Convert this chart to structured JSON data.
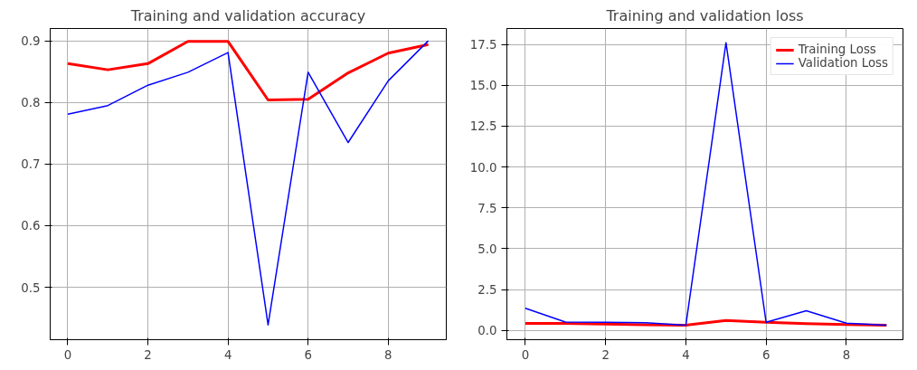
{
  "chart_data": [
    {
      "type": "line",
      "title": "Training and validation accuracy",
      "x": [
        0,
        1,
        2,
        3,
        4,
        5,
        6,
        7,
        8,
        9
      ],
      "xlim": [
        -0.44,
        9.45
      ],
      "xticks": [
        0,
        2,
        4,
        6,
        8
      ],
      "ylim": [
        0.415,
        0.92
      ],
      "yticks": [
        0.5,
        0.6,
        0.7,
        0.8,
        0.9
      ],
      "grid": true,
      "legend": false,
      "series": [
        {
          "color": "#ff0000",
          "values": [
            0.863,
            0.853,
            0.863,
            0.899,
            0.899,
            0.804,
            0.805,
            0.848,
            0.88,
            0.894
          ]
        },
        {
          "color": "#0000ff",
          "values": [
            0.781,
            0.795,
            0.828,
            0.849,
            0.881,
            0.439,
            0.849,
            0.735,
            0.835,
            0.9
          ]
        }
      ]
    },
    {
      "type": "line",
      "title": "Training and validation loss",
      "x": [
        0,
        1,
        2,
        3,
        4,
        5,
        6,
        7,
        8,
        9
      ],
      "xlim": [
        -0.46,
        9.41
      ],
      "xticks": [
        0,
        2,
        4,
        6,
        8
      ],
      "ylim": [
        -0.56,
        18.47
      ],
      "yticks": [
        {
          "value": 0,
          "label": "0.0"
        },
        {
          "value": 2.5,
          "label": "2.5"
        },
        {
          "value": 5,
          "label": "5.0"
        },
        {
          "value": 7.5,
          "label": "7.5"
        },
        {
          "value": 10,
          "label": "10.0"
        },
        {
          "value": 12.5,
          "label": "12.5"
        },
        {
          "value": 15,
          "label": "15.0"
        },
        {
          "value": 17.5,
          "label": "17.5"
        }
      ],
      "grid": true,
      "legend": "top right",
      "series": [
        {
          "name": "Training Loss",
          "color": "#ff0000",
          "values": [
            0.43,
            0.43,
            0.4,
            0.35,
            0.33,
            0.62,
            0.5,
            0.42,
            0.37,
            0.33
          ]
        },
        {
          "name": "Validation Loss",
          "color": "#0000ff",
          "values": [
            1.36,
            0.52,
            0.5,
            0.48,
            0.33,
            17.6,
            0.5,
            1.21,
            0.45,
            0.33
          ]
        }
      ]
    }
  ]
}
